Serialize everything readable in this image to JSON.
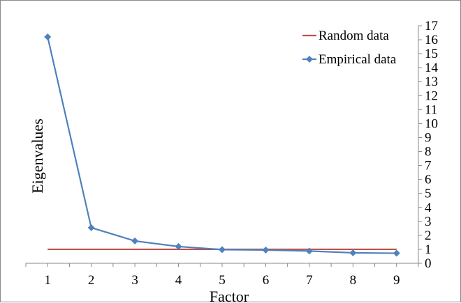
{
  "chart_data": {
    "type": "line",
    "title": "",
    "xlabel": "Factor",
    "ylabel": "Eigenvalues",
    "x": [
      1,
      2,
      3,
      4,
      5,
      6,
      7,
      8,
      9
    ],
    "xticks": [
      "1",
      "2",
      "3",
      "4",
      "5",
      "6",
      "7",
      "8",
      "9"
    ],
    "xlim": [
      0.5,
      9.5
    ],
    "yticks": [
      "0",
      "1",
      "2",
      "3",
      "4",
      "5",
      "6",
      "7",
      "8",
      "9",
      "10",
      "11",
      "12",
      "13",
      "14",
      "15",
      "16",
      "17"
    ],
    "ylim": [
      0,
      17
    ],
    "y_axis_side": "right",
    "grid": false,
    "legend_position": "top-right",
    "series": [
      {
        "name": "Random data",
        "color": "#c0504d",
        "marker": "none",
        "values": [
          1,
          1,
          1,
          1,
          1,
          1,
          1,
          1,
          1
        ]
      },
      {
        "name": "Empirical data",
        "color": "#4f81bd",
        "marker": "diamond",
        "values": [
          16.2,
          2.55,
          1.6,
          1.2,
          0.98,
          0.95,
          0.88,
          0.75,
          0.72
        ]
      }
    ]
  }
}
